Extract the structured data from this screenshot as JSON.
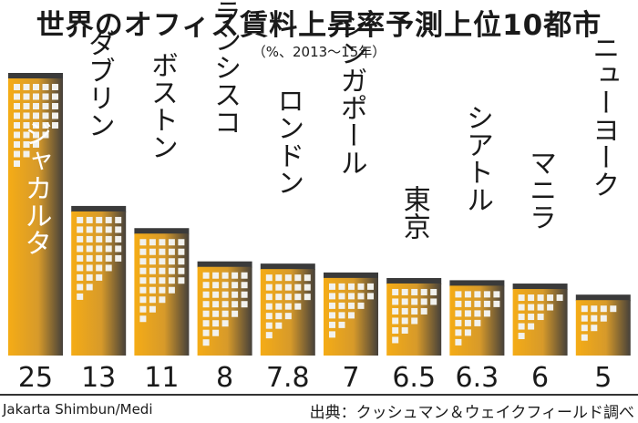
{
  "chart_data": {
    "type": "bar",
    "title": "世界のオフィス賃料上昇率予測上位10都市",
    "subtitle": "（%、2013～15年）",
    "categories": [
      "ジャカルタ",
      "ダブリン",
      "ボストン",
      "サンフランシスコ",
      "ロンドン",
      "シンガポール",
      "東京",
      "シアトル",
      "マニラ",
      "ニューヨーク"
    ],
    "values": [
      25,
      13,
      11,
      8,
      7.8,
      7,
      6.5,
      6.3,
      6,
      5
    ],
    "value_labels": [
      "25",
      "13",
      "11",
      "8",
      "7.8",
      "7",
      "6.5",
      "6.3",
      "6",
      "5"
    ],
    "xlabel": "",
    "ylabel": "",
    "ylim": [
      0,
      25
    ],
    "grid": false,
    "legend": "none",
    "colors": {
      "bar_light": "#f5ac16",
      "bar_dark": "#45403a",
      "bar_top": "#3a3a3a",
      "window": "#f2f2ee",
      "label_on_bar": "#ffffff",
      "label": "#1a1a1a"
    }
  },
  "credits": {
    "left": "Jakarta Shimbun/Medi",
    "right": "出典：クッシュマン＆ウェイクフィールド調べ"
  }
}
